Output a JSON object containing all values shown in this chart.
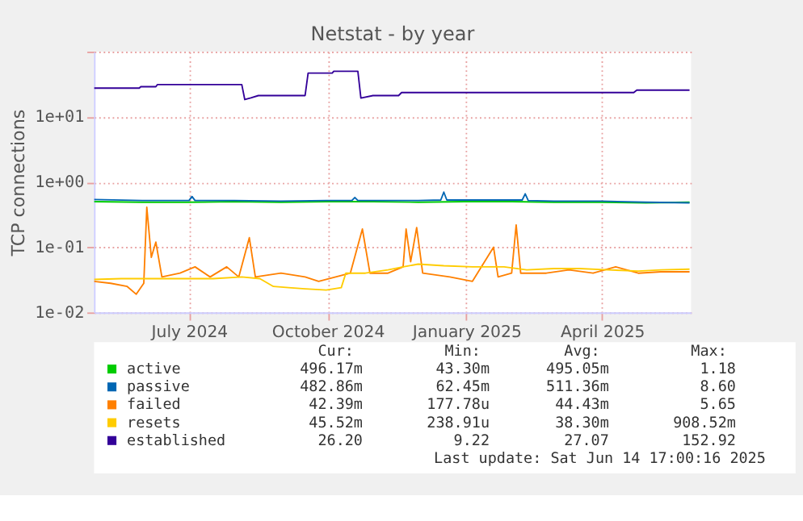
{
  "chart_data": {
    "type": "line",
    "title": "Netstat - by year",
    "ylabel": "TCP connections",
    "log": true,
    "grid": true,
    "legend": "bottom",
    "marker": "none",
    "line_style": "solid",
    "xlim": [
      "2024-05-14",
      "2025-06-14"
    ],
    "xticks": [
      {
        "value": "2024-07-16",
        "label": "July 2024"
      },
      {
        "value": "2024-10-16",
        "label": "October 2024"
      },
      {
        "value": "2025-01-16",
        "label": "January 2025"
      },
      {
        "value": "2025-04-16",
        "label": "April 2025"
      }
    ],
    "ylim": [
      0.01,
      100
    ],
    "yticks": [
      {
        "value": 0.01,
        "label": "1e-02"
      },
      {
        "value": 0.1,
        "label": "1e-01"
      },
      {
        "value": 1,
        "label": "1e+00"
      },
      {
        "value": 10,
        "label": "1e+01"
      },
      {
        "value": 100,
        "label": null
      }
    ],
    "series": [
      {
        "name": "active",
        "color": "#00cc00",
        "x": [
          "2024-05-14",
          "2024-06-15",
          "2024-07-15",
          "2024-08-15",
          "2024-09-15",
          "2024-10-15",
          "2024-11-15",
          "2024-12-15",
          "2025-01-15",
          "2025-02-15",
          "2025-03-15",
          "2025-04-15",
          "2025-05-15",
          "2025-06-13"
        ],
        "values": [
          0.5,
          0.49,
          0.49,
          0.5,
          0.49,
          0.5,
          0.5,
          0.49,
          0.5,
          0.5,
          0.49,
          0.49,
          0.48,
          0.49
        ]
      },
      {
        "name": "passive",
        "color": "#0066b3",
        "x": [
          "2024-05-14",
          "2024-06-15",
          "2024-07-16",
          "2024-07-18",
          "2024-07-20",
          "2024-08-15",
          "2024-09-15",
          "2024-10-15",
          "2024-11-01",
          "2024-11-03",
          "2024-11-05",
          "2024-12-15",
          "2024-12-30",
          "2025-01-01",
          "2025-01-03",
          "2025-02-22",
          "2025-02-24",
          "2025-02-26",
          "2025-03-15",
          "2025-04-15",
          "2025-05-15",
          "2025-06-13"
        ],
        "values": [
          0.54,
          0.52,
          0.52,
          0.6,
          0.52,
          0.52,
          0.51,
          0.52,
          0.52,
          0.58,
          0.52,
          0.52,
          0.53,
          0.7,
          0.53,
          0.53,
          0.66,
          0.52,
          0.51,
          0.51,
          0.49,
          0.48
        ]
      },
      {
        "name": "failed",
        "color": "#ff8000",
        "x": [
          "2024-05-14",
          "2024-05-25",
          "2024-06-05",
          "2024-06-11",
          "2024-06-16",
          "2024-06-18",
          "2024-06-21",
          "2024-06-24",
          "2024-06-28",
          "2024-07-10",
          "2024-07-20",
          "2024-07-30",
          "2024-08-10",
          "2024-08-18",
          "2024-08-25",
          "2024-08-29",
          "2024-09-15",
          "2024-10-01",
          "2024-10-10",
          "2024-10-31",
          "2024-11-08",
          "2024-11-13",
          "2024-11-25",
          "2024-12-05",
          "2024-12-07",
          "2024-12-10",
          "2024-12-14",
          "2024-12-18",
          "2025-01-05",
          "2025-01-20",
          "2025-02-03",
          "2025-02-06",
          "2025-02-15",
          "2025-02-18",
          "2025-02-21",
          "2025-03-10",
          "2025-03-25",
          "2025-04-10",
          "2025-04-25",
          "2025-05-10",
          "2025-05-25",
          "2025-06-13"
        ],
        "values": [
          0.03,
          0.028,
          0.025,
          0.019,
          0.028,
          0.41,
          0.07,
          0.12,
          0.035,
          0.04,
          0.05,
          0.035,
          0.05,
          0.035,
          0.14,
          0.035,
          0.04,
          0.035,
          0.03,
          0.04,
          0.19,
          0.04,
          0.04,
          0.05,
          0.19,
          0.06,
          0.2,
          0.04,
          0.035,
          0.03,
          0.1,
          0.035,
          0.04,
          0.22,
          0.04,
          0.04,
          0.045,
          0.04,
          0.05,
          0.04,
          0.042,
          0.042
        ]
      },
      {
        "name": "resets",
        "color": "#ffcc00",
        "x": [
          "2024-05-14",
          "2024-06-01",
          "2024-07-01",
          "2024-08-01",
          "2024-08-20",
          "2024-09-01",
          "2024-09-10",
          "2024-09-20",
          "2024-10-01",
          "2024-10-15",
          "2024-10-25",
          "2024-10-28",
          "2024-11-10",
          "2024-11-25",
          "2024-12-05",
          "2024-12-15",
          "2025-01-01",
          "2025-01-20",
          "2025-02-10",
          "2025-02-25",
          "2025-03-15",
          "2025-04-01",
          "2025-04-20",
          "2025-05-10",
          "2025-05-25",
          "2025-06-13"
        ],
        "values": [
          0.032,
          0.033,
          0.033,
          0.033,
          0.035,
          0.033,
          0.025,
          0.024,
          0.023,
          0.022,
          0.024,
          0.04,
          0.04,
          0.045,
          0.05,
          0.055,
          0.052,
          0.05,
          0.05,
          0.045,
          0.047,
          0.047,
          0.045,
          0.043,
          0.045,
          0.046
        ]
      },
      {
        "name": "established",
        "color": "#330099",
        "x": [
          "2024-05-14",
          "2024-06-13",
          "2024-06-14",
          "2024-06-24",
          "2024-06-25",
          "2024-08-20",
          "2024-08-22",
          "2024-08-26",
          "2024-08-31",
          "2024-10-01",
          "2024-10-03",
          "2024-10-19",
          "2024-10-20",
          "2024-11-05",
          "2024-11-07",
          "2024-11-15",
          "2024-12-02",
          "2024-12-04",
          "2025-05-07",
          "2025-05-09",
          "2025-06-13"
        ],
        "values": [
          27.6,
          27.6,
          29,
          29,
          31.2,
          31.2,
          18.4,
          19.5,
          21.2,
          21.2,
          46.9,
          46.9,
          50.1,
          50.1,
          19.4,
          21.2,
          21.2,
          23.6,
          23.6,
          25.7,
          25.7
        ]
      }
    ],
    "annotations": [
      "Cur:",
      "Min:",
      "Avg:",
      "Max:",
      "496.17m",
      "43.30m",
      "495.05m",
      "1.18",
      "482.86m",
      "62.45m",
      "511.36m",
      "8.60",
      "42.39m",
      "177.78u",
      "44.43m",
      "5.65",
      "45.52m",
      "238.91u",
      "38.30m",
      "908.52m",
      "26.20",
      "9.22",
      "27.07",
      "152.92",
      "Last update: Sat Jun 14 17:00:16 2025"
    ]
  }
}
